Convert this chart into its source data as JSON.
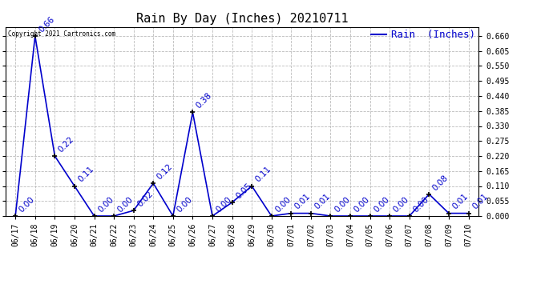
{
  "title": "Rain By Day (Inches) 20210711",
  "legend_label": "Rain  (Inches)",
  "copyright_text": "Copyright 2021 Cartronics.com",
  "line_color": "#0000CC",
  "marker_color": "#000000",
  "background_color": "#ffffff",
  "grid_color": "#bbbbbb",
  "text_color_blue": "#0000CC",
  "dates": [
    "06/17",
    "06/18",
    "06/19",
    "06/20",
    "06/21",
    "06/22",
    "06/23",
    "06/24",
    "06/25",
    "06/26",
    "06/27",
    "06/28",
    "06/29",
    "06/30",
    "07/01",
    "07/02",
    "07/03",
    "07/04",
    "07/05",
    "07/06",
    "07/07",
    "07/08",
    "07/09",
    "07/10"
  ],
  "values": [
    0.0,
    0.66,
    0.22,
    0.11,
    0.0,
    0.0,
    0.02,
    0.12,
    0.0,
    0.38,
    0.0,
    0.05,
    0.11,
    0.0,
    0.01,
    0.01,
    0.0,
    0.0,
    0.0,
    0.0,
    0.0,
    0.08,
    0.01,
    0.01
  ],
  "ylim": [
    0.0,
    0.693
  ],
  "yticks": [
    0.0,
    0.055,
    0.11,
    0.165,
    0.22,
    0.275,
    0.33,
    0.385,
    0.44,
    0.495,
    0.55,
    0.605,
    0.66
  ],
  "annotation_fontsize": 7.5,
  "title_fontsize": 11,
  "tick_fontsize": 7,
  "legend_fontsize": 9
}
